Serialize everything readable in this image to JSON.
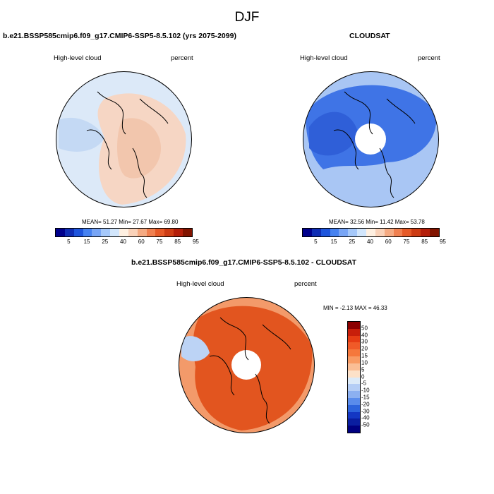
{
  "figure": {
    "title": "DJF"
  },
  "panels": {
    "model": {
      "title": "b.e21.BSSP585cmip6.f09_g17.CMIP6-SSP5-8.5.102 (yrs 2075-2099)",
      "variable": "High-level cloud",
      "units": "percent",
      "mean_label": "MEAN=",
      "mean_value": "51.27",
      "min_label": "Min=",
      "min_value": "27.67",
      "max_label": "Max=",
      "max_value": "69.80"
    },
    "obs": {
      "title": "CLOUDSAT",
      "variable": "High-level cloud",
      "units": "percent",
      "mean_label": "MEAN=",
      "mean_value": "32.56",
      "min_label": "Min=",
      "min_value": "11.42",
      "max_label": "Max=",
      "max_value": "53.78"
    },
    "diff": {
      "title": "b.e21.BSSP585cmip6.f09_g17.CMIP6-SSP5-8.5.102 - CLOUDSAT",
      "variable": "High-level cloud",
      "units": "percent",
      "min_label": "MIN =",
      "min_value": "-2.13",
      "max_label": "MAX =",
      "max_value": "46.33"
    }
  },
  "colorbars": {
    "abs_ticks": [
      "5",
      "15",
      "25",
      "40",
      "60",
      "75",
      "85",
      "95"
    ],
    "abs_colors": [
      "#00008c",
      "#0f2db4",
      "#1e55dc",
      "#4682f0",
      "#78a5f5",
      "#a5c8fa",
      "#d2e6fc",
      "#fff0e1",
      "#fad2b9",
      "#f5aa82",
      "#f08050",
      "#e65a28",
      "#cd3c14",
      "#b41e0a",
      "#821400"
    ],
    "diff_ticks": [
      "50",
      "40",
      "30",
      "20",
      "15",
      "10",
      "5",
      "0",
      "-5",
      "-10",
      "-15",
      "-20",
      "-30",
      "-40",
      "-50"
    ],
    "diff_colors": [
      "#8c0000",
      "#c81e0a",
      "#e63c14",
      "#f05a28",
      "#f5783c",
      "#f89b64",
      "#fabe96",
      "#fde1c8",
      "#dceaf8",
      "#b4cdf5",
      "#8cb0f0",
      "#5a8ceb",
      "#2d64dc",
      "#1437c3",
      "#0a1ea0",
      "#000080"
    ]
  },
  "maps": {
    "model": {
      "pole": "#f2c6ad",
      "mid": "#f6d6c4",
      "edge": "#dce9f8",
      "blue_patch": "#c4d9f4"
    },
    "obs": {
      "pole": "#ffffff",
      "mid": "#3f74e6",
      "edge": "#a9c6f4",
      "blue_patch": "#2f5fd8"
    },
    "diff": {
      "pole": "#ffffff",
      "mid": "#e2551f",
      "edge": "#f39a6a",
      "blue_patch": "#bcd3f5"
    }
  }
}
